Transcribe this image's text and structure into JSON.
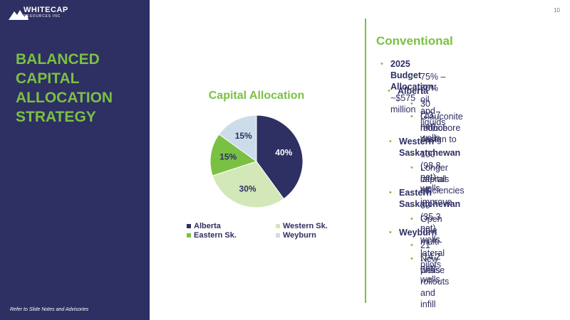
{
  "slide": {
    "title_lines": [
      "BALANCED",
      "CAPITAL",
      "ALLOCATION",
      "STRATEGY"
    ],
    "footnote": "Refer to Slide Notes and Advisories",
    "page_number": "10",
    "logo": {
      "main": "WHITECAP",
      "sub": "RESOURCES INC"
    }
  },
  "colors": {
    "navy": "#2e2f63",
    "green": "#7ac143",
    "light_green": "#d3e8b8",
    "light_blue": "#cddcea"
  },
  "chart_data": {
    "type": "pie",
    "title": "Capital Allocation",
    "labels": [
      "Alberta",
      "Western Sk.",
      "Eastern Sk.",
      "Weyburn"
    ],
    "values": [
      40,
      30,
      15,
      15
    ],
    "value_labels": [
      "40%",
      "30%",
      "15%",
      "15%"
    ],
    "colors": [
      "#2e2f63",
      "#d3e8b8",
      "#7ac143",
      "#cddcea"
    ],
    "legend_position": "bottom"
  },
  "conventional": {
    "heading": "Conventional",
    "budget_label": "2025 Budget Allocation:",
    "budget_value": " ~$575 million",
    "budget_sub": "75% – 80% oil and liquids",
    "regions": [
      {
        "name": "Alberta",
        "items": [
          "30 (23.7 net) wells",
          "Glauconite monobore design to",
          "reduce costs"
        ]
      },
      {
        "name": "Western Saskatchewan",
        "items": [
          "100 (98.8 net) wells",
          "Longer laterals to improve",
          "capital efficiencies"
        ]
      },
      {
        "name": "Eastern Saskatchewan",
        "items": [
          "39 (35.3 net) wells",
          "Open hole multi-lateral pilots"
        ]
      },
      {
        "name": "Weyburn",
        "items": [
          "21 (14.2 net) wells",
          "New phase rollouts and infill",
          "wells"
        ]
      }
    ]
  }
}
